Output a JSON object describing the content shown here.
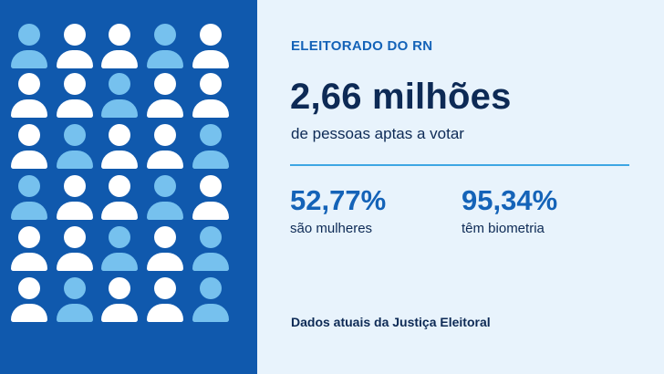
{
  "infographic": {
    "kicker": "ELEITORADO DO RN",
    "headline_value": "2,66 milhões",
    "headline_caption": "de pessoas aptas a votar",
    "stats": [
      {
        "value": "52,77%",
        "label": "são mulheres"
      },
      {
        "value": "95,34%",
        "label": "têm biometria"
      }
    ],
    "footer_note": "Dados atuais da Justiça Eleitoral"
  },
  "colors": {
    "left_background": "#1059ad",
    "right_background": "#e8f3fc",
    "accent": "#1463b8",
    "divider": "#3da6e3",
    "person_white": "#ffffff",
    "person_light": "#76c1ee",
    "text_dark": "#0d2a55"
  },
  "people_grid": {
    "icon": "person-icon",
    "rows": [
      [
        "light",
        "white",
        "white",
        "light",
        "white"
      ],
      [
        "white",
        "white",
        "light",
        "white",
        "white"
      ],
      [
        "white",
        "light",
        "white",
        "white",
        "light"
      ],
      [
        "light",
        "white",
        "white",
        "light",
        "white"
      ],
      [
        "white",
        "white",
        "light",
        "white",
        "light"
      ],
      [
        "white",
        "light",
        "white",
        "white",
        "light"
      ]
    ]
  }
}
